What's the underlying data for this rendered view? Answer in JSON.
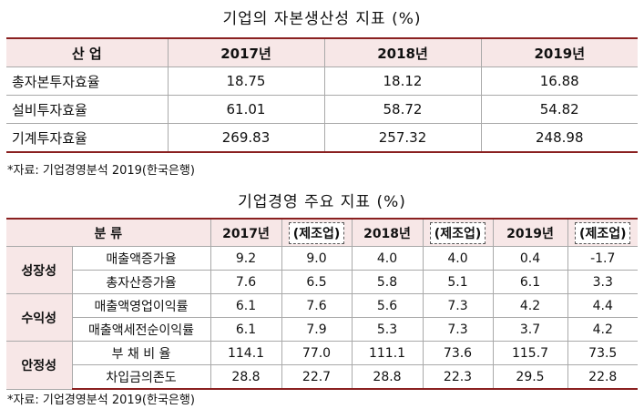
{
  "title1": "기업의 자본생산성 지표 (%)",
  "table1": {
    "header": [
      "산 업",
      "2017년",
      "2018년",
      "2019년"
    ],
    "rows": [
      {
        "label": "총자본투자효율",
        "values": [
          "18.75",
          "18.12",
          "16.88"
        ]
      },
      {
        "label": "설비투자효율",
        "values": [
          "61.01",
          "58.72",
          "54.82"
        ]
      },
      {
        "label": "기계투자효율",
        "values": [
          "269.83",
          "257.32",
          "248.98"
        ]
      }
    ]
  },
  "note1": "*자료: 기업경영분석 2019(한국은행)",
  "title2": "기업경영 주요 지표 (%)",
  "table2": {
    "header": {
      "category": "분 류",
      "y2017": "2017년",
      "y2018": "2018년",
      "y2019": "2019년",
      "mfg": "(제조업)"
    },
    "groups": [
      {
        "name": "성장성",
        "rows": [
          {
            "label": "매출액증가율",
            "values": [
              "9.2",
              "9.0",
              "4.0",
              "4.0",
              "0.4",
              "-1.7"
            ]
          },
          {
            "label": "총자산증가율",
            "values": [
              "7.6",
              "6.5",
              "5.8",
              "5.1",
              "6.1",
              "3.3"
            ]
          }
        ]
      },
      {
        "name": "수익성",
        "rows": [
          {
            "label": "매출액영업이익률",
            "values": [
              "6.1",
              "7.6",
              "5.6",
              "7.3",
              "4.2",
              "4.4"
            ]
          },
          {
            "label": "매출액세전순이익률",
            "values": [
              "6.1",
              "7.9",
              "5.3",
              "7.3",
              "3.7",
              "4.2"
            ]
          }
        ]
      },
      {
        "name": "안정성",
        "rows": [
          {
            "label": "부 채 비 율",
            "values": [
              "114.1",
              "77.0",
              "111.1",
              "73.6",
              "115.7",
              "73.5"
            ]
          },
          {
            "label": "차입금의존도",
            "values": [
              "28.8",
              "22.7",
              "28.8",
              "22.3",
              "29.5",
              "22.8"
            ]
          }
        ]
      }
    ]
  },
  "note2": "*자료: 기업경영분석 2019(한국은행)"
}
